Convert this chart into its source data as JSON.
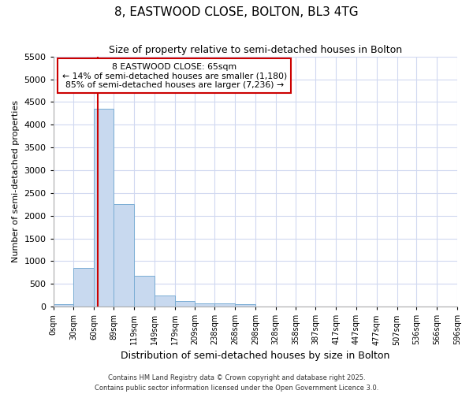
{
  "title": "8, EASTWOOD CLOSE, BOLTON, BL3 4TG",
  "subtitle": "Size of property relative to semi-detached houses in Bolton",
  "xlabel": "Distribution of semi-detached houses by size in Bolton",
  "ylabel": "Number of semi-detached properties",
  "bin_labels": [
    "0sqm",
    "30sqm",
    "60sqm",
    "89sqm",
    "119sqm",
    "149sqm",
    "179sqm",
    "209sqm",
    "238sqm",
    "268sqm",
    "298sqm",
    "328sqm",
    "358sqm",
    "387sqm",
    "417sqm",
    "447sqm",
    "477sqm",
    "507sqm",
    "536sqm",
    "566sqm",
    "596sqm"
  ],
  "bin_edges": [
    0,
    30,
    60,
    89,
    119,
    149,
    179,
    209,
    238,
    268,
    298,
    328,
    358,
    387,
    417,
    447,
    477,
    507,
    536,
    566,
    596
  ],
  "bar_heights": [
    50,
    850,
    4350,
    2250,
    680,
    250,
    120,
    70,
    65,
    60,
    0,
    0,
    0,
    0,
    0,
    0,
    0,
    0,
    0,
    0
  ],
  "bar_color": "#c8d9ef",
  "bar_edge_color": "#7aadd4",
  "property_size": 65,
  "vline_color": "#cc0000",
  "annotation_title": "8 EASTWOOD CLOSE: 65sqm",
  "annotation_line1": "← 14% of semi-detached houses are smaller (1,180)",
  "annotation_line2": "85% of semi-detached houses are larger (7,236) →",
  "annotation_box_color": "#ffffff",
  "annotation_box_edge": "#cc0000",
  "ylim": [
    0,
    5500
  ],
  "yticks": [
    0,
    500,
    1000,
    1500,
    2000,
    2500,
    3000,
    3500,
    4000,
    4500,
    5000,
    5500
  ],
  "bg_color": "#ffffff",
  "grid_color": "#d0d8f0",
  "footer1": "Contains HM Land Registry data © Crown copyright and database right 2025.",
  "footer2": "Contains public sector information licensed under the Open Government Licence 3.0."
}
